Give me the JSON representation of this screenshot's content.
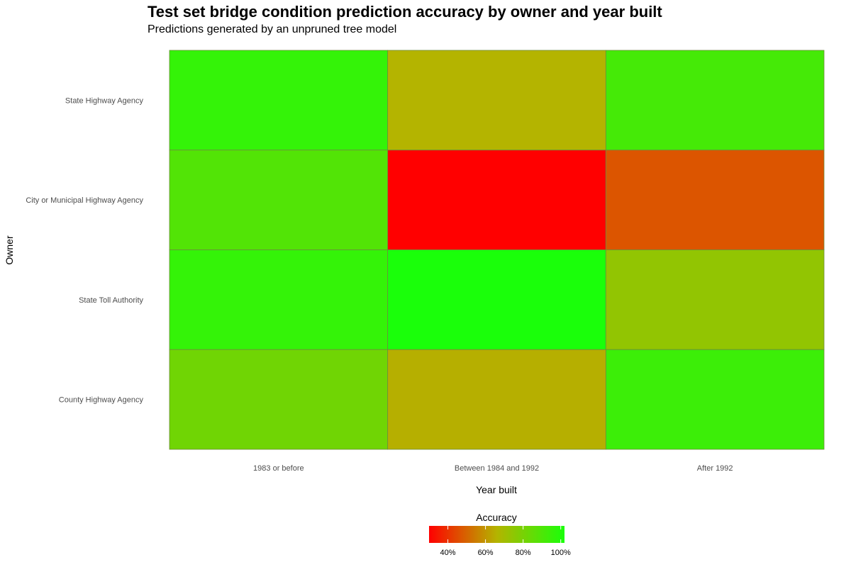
{
  "chart_data": {
    "type": "heatmap",
    "title": "Test set bridge condition prediction accuracy by owner and year built",
    "subtitle": "Predictions generated by an unpruned tree model",
    "xlabel": "Year built",
    "ylabel": "Owner",
    "x_categories": [
      "1983 or before",
      "Between 1984 and 1992",
      "After 1992"
    ],
    "y_categories": [
      "State Highway Agency",
      "City or Municipal Highway Agency",
      "State Toll Authority",
      "County Highway Agency"
    ],
    "values": [
      [
        0.96,
        0.66,
        0.92
      ],
      [
        0.89,
        0.3,
        0.47
      ],
      [
        0.96,
        1.02,
        0.74
      ],
      [
        0.82,
        0.65,
        0.94
      ]
    ],
    "legend": {
      "title": "Accuracy",
      "placement": "bottom",
      "range": [
        0.3,
        1.02
      ],
      "ticks": [
        0.4,
        0.6,
        0.8,
        1.0
      ],
      "tick_labels": [
        "40%",
        "60%",
        "80%",
        "100%"
      ],
      "colors": {
        "low": "#ff0000",
        "mid": "#b4b400",
        "high": "#1aff0a"
      }
    },
    "grid": false
  }
}
